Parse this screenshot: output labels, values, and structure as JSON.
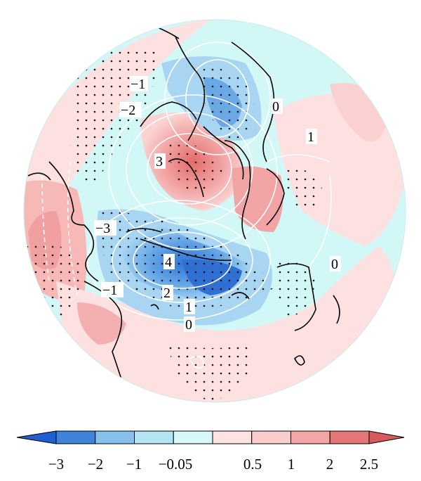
{
  "map": {
    "projection": "polar-stereographic-north",
    "background_color": "#ccf7f7",
    "contour_color": "#ffffff",
    "coastline_color": "#000000",
    "stipple_color": "#000000",
    "contour_labels": [
      "−1",
      "−2",
      "3",
      "0",
      "1",
      "−3",
      "4",
      "−1",
      "2",
      "1",
      "0",
      "0"
    ]
  },
  "colorbar": {
    "tick_labels": [
      "−3",
      "−2",
      "−1",
      "−0.05",
      "0.5",
      "1",
      "2",
      "2.5"
    ],
    "colors": [
      "#3f84d9",
      "#86c1ed",
      "#b4e4f1",
      "#d6f8f8",
      "#fde3e3",
      "#fbcccc",
      "#f4a6a6",
      "#e47676"
    ],
    "left_extend_color": "#1f5fd0",
    "right_extend_color": "#d85a5a"
  }
}
